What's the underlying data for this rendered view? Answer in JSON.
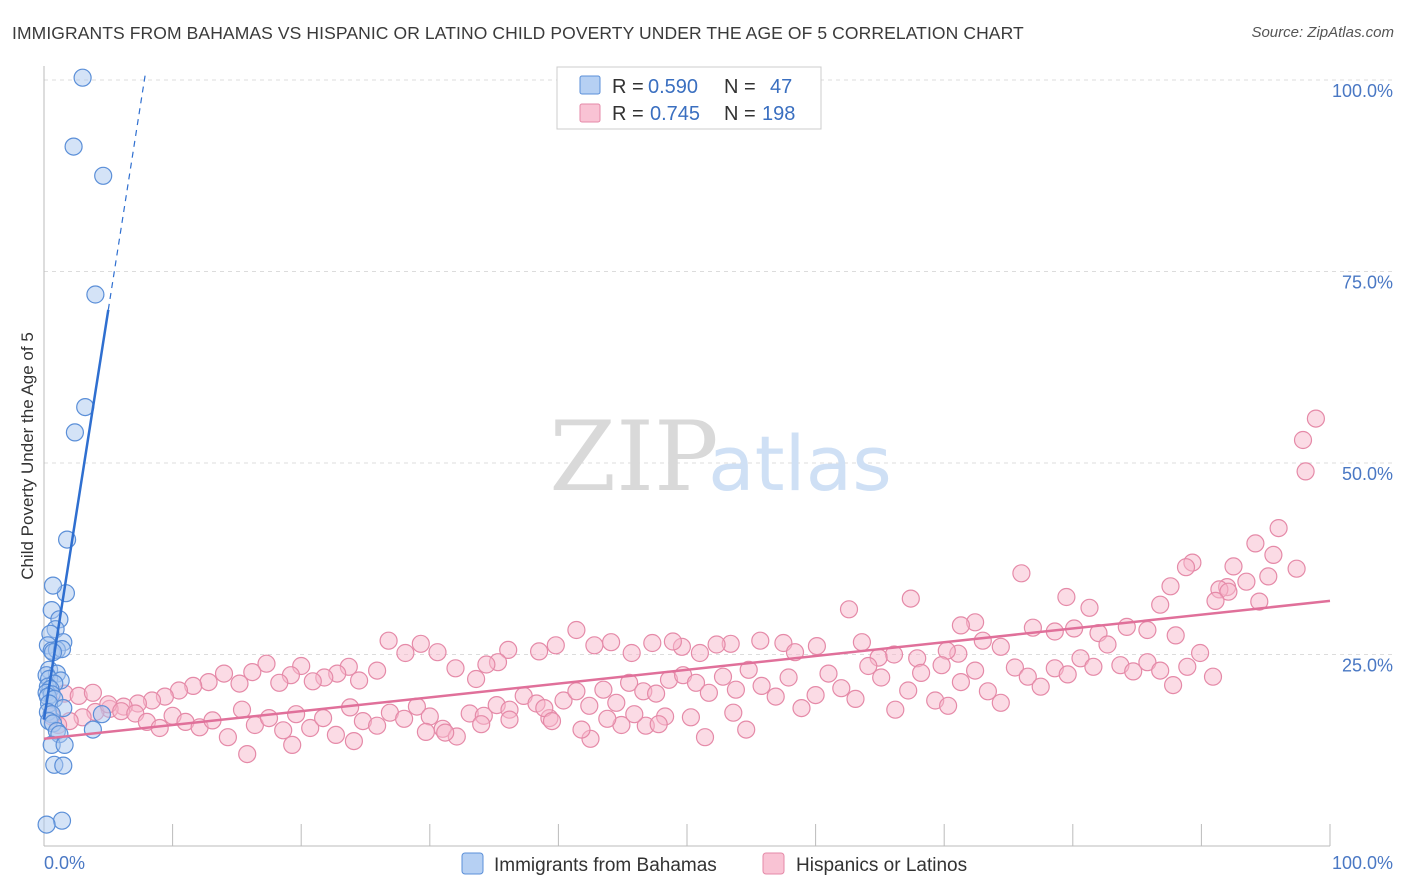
{
  "header": {
    "title": "IMMIGRANTS FROM BAHAMAS VS HISPANIC OR LATINO CHILD POVERTY UNDER THE AGE OF 5 CORRELATION CHART",
    "source": "Source: ZipAtlas.com"
  },
  "watermark": {
    "zip": "ZIP",
    "atlas": "atlas"
  },
  "legend_box": {
    "rows": [
      {
        "r_label": "R =",
        "r_value": "0.590",
        "n_label": "N =",
        "n_value": "47"
      },
      {
        "r_label": "R =",
        "r_value": "0.745",
        "n_label": "N =",
        "n_value": "198"
      }
    ]
  },
  "colors": {
    "blue_fill": "#a9c8f0",
    "blue_stroke": "#5b8fd8",
    "blue_line": "#2f6fd0",
    "pink_fill": "#f7b8cc",
    "pink_stroke": "#e58aa8",
    "pink_line": "#e0709a",
    "grid": "#dcdcdc",
    "axis_text": "#4a78c4"
  },
  "chart_data": {
    "type": "scatter",
    "title": "IMMIGRANTS FROM BAHAMAS VS HISPANIC OR LATINO CHILD POVERTY UNDER THE AGE OF 5 CORRELATION CHART",
    "xlabel": "",
    "ylabel": "Child Poverty Under the Age of 5",
    "xlim": [
      0,
      100
    ],
    "ylim": [
      0,
      105
    ],
    "x_tick_labels": [
      "0.0%",
      "100.0%"
    ],
    "y_ticks": [
      25,
      50,
      75,
      100
    ],
    "y_tick_labels": [
      "25.0%",
      "50.0%",
      "75.0%",
      "100.0%"
    ],
    "legend": [
      "Immigrants from Bahamas",
      "Hispanics or Latinos"
    ],
    "series": [
      {
        "name": "Immigrants from Bahamas",
        "r": 0.59,
        "n": 47,
        "trend": {
          "x0": 0.0,
          "y0": 16.5,
          "x1": 5.0,
          "y1": 70.0,
          "dash_to_x": 7.9,
          "dash_to_y": 101.0
        },
        "points": [
          [
            3.0,
            100.3
          ],
          [
            2.3,
            91.3
          ],
          [
            4.6,
            87.5
          ],
          [
            4.0,
            72.0
          ],
          [
            3.2,
            57.3
          ],
          [
            2.4,
            54.0
          ],
          [
            1.8,
            40.0
          ],
          [
            1.7,
            33.0
          ],
          [
            0.7,
            34.0
          ],
          [
            0.6,
            30.8
          ],
          [
            1.2,
            29.6
          ],
          [
            0.9,
            28.3
          ],
          [
            0.5,
            27.7
          ],
          [
            1.5,
            26.6
          ],
          [
            0.3,
            26.2
          ],
          [
            0.6,
            25.5
          ],
          [
            1.0,
            25.6
          ],
          [
            1.4,
            25.7
          ],
          [
            0.7,
            25.3
          ],
          [
            0.4,
            23.0
          ],
          [
            1.0,
            22.5
          ],
          [
            0.2,
            22.3
          ],
          [
            0.4,
            21.8
          ],
          [
            1.3,
            21.6
          ],
          [
            0.8,
            21.2
          ],
          [
            0.3,
            20.8
          ],
          [
            0.5,
            20.5
          ],
          [
            0.2,
            20.0
          ],
          [
            0.6,
            19.8
          ],
          [
            0.3,
            19.5
          ],
          [
            0.8,
            19.2
          ],
          [
            0.4,
            18.6
          ],
          [
            1.5,
            18.0
          ],
          [
            0.3,
            17.5
          ],
          [
            0.6,
            17.2
          ],
          [
            4.5,
            17.2
          ],
          [
            0.4,
            16.3
          ],
          [
            0.7,
            16.0
          ],
          [
            3.8,
            15.2
          ],
          [
            1.0,
            15.0
          ],
          [
            1.2,
            14.6
          ],
          [
            0.6,
            13.2
          ],
          [
            1.6,
            13.2
          ],
          [
            0.8,
            10.6
          ],
          [
            1.5,
            10.5
          ],
          [
            1.4,
            3.3
          ],
          [
            0.2,
            2.8
          ]
        ]
      },
      {
        "name": "Hispanics or Latinos",
        "r": 0.745,
        "n": 198,
        "trend": {
          "x0": 0.0,
          "y0": 14.0,
          "x1": 100.0,
          "y1": 32.0
        },
        "points": [
          [
            98.9,
            55.8
          ],
          [
            97.9,
            53.0
          ],
          [
            98.1,
            48.9
          ],
          [
            96.0,
            41.5
          ],
          [
            94.2,
            39.5
          ],
          [
            95.6,
            38.0
          ],
          [
            95.2,
            35.2
          ],
          [
            97.4,
            36.2
          ],
          [
            89.3,
            37.0
          ],
          [
            88.8,
            36.4
          ],
          [
            92.5,
            36.5
          ],
          [
            93.5,
            34.5
          ],
          [
            92.0,
            33.8
          ],
          [
            87.6,
            33.9
          ],
          [
            91.4,
            33.5
          ],
          [
            92.1,
            33.2
          ],
          [
            91.1,
            32.0
          ],
          [
            94.5,
            31.9
          ],
          [
            86.8,
            31.5
          ],
          [
            79.5,
            32.5
          ],
          [
            76.0,
            35.6
          ],
          [
            81.3,
            31.1
          ],
          [
            67.4,
            32.3
          ],
          [
            62.6,
            30.9
          ],
          [
            76.9,
            28.5
          ],
          [
            78.6,
            28.0
          ],
          [
            80.1,
            28.4
          ],
          [
            82.0,
            27.8
          ],
          [
            84.2,
            28.6
          ],
          [
            85.8,
            28.2
          ],
          [
            88.0,
            27.5
          ],
          [
            72.4,
            29.2
          ],
          [
            71.3,
            28.8
          ],
          [
            74.4,
            26.0
          ],
          [
            73.0,
            26.8
          ],
          [
            71.1,
            25.1
          ],
          [
            70.2,
            25.5
          ],
          [
            69.8,
            23.6
          ],
          [
            67.9,
            24.5
          ],
          [
            66.1,
            25.0
          ],
          [
            64.9,
            24.6
          ],
          [
            63.6,
            26.6
          ],
          [
            60.1,
            26.1
          ],
          [
            57.5,
            26.5
          ],
          [
            58.4,
            25.3
          ],
          [
            55.7,
            26.8
          ],
          [
            53.4,
            26.4
          ],
          [
            52.3,
            26.3
          ],
          [
            51.0,
            25.2
          ],
          [
            49.6,
            26.0
          ],
          [
            48.9,
            26.7
          ],
          [
            47.3,
            26.5
          ],
          [
            45.7,
            25.2
          ],
          [
            44.1,
            26.6
          ],
          [
            42.8,
            26.2
          ],
          [
            41.4,
            28.2
          ],
          [
            39.8,
            26.2
          ],
          [
            38.5,
            25.4
          ],
          [
            36.1,
            25.6
          ],
          [
            35.3,
            24.0
          ],
          [
            34.4,
            23.7
          ],
          [
            33.6,
            21.8
          ],
          [
            32.0,
            23.2
          ],
          [
            30.6,
            25.3
          ],
          [
            29.3,
            26.4
          ],
          [
            28.1,
            25.2
          ],
          [
            26.8,
            26.8
          ],
          [
            25.9,
            22.9
          ],
          [
            24.5,
            21.6
          ],
          [
            23.7,
            23.4
          ],
          [
            22.8,
            22.5
          ],
          [
            21.8,
            22.0
          ],
          [
            20.9,
            21.5
          ],
          [
            20.0,
            23.5
          ],
          [
            19.2,
            22.3
          ],
          [
            18.3,
            21.3
          ],
          [
            17.3,
            23.8
          ],
          [
            16.2,
            22.7
          ],
          [
            15.2,
            21.2
          ],
          [
            14.0,
            22.5
          ],
          [
            12.8,
            21.4
          ],
          [
            11.6,
            20.9
          ],
          [
            10.5,
            20.3
          ],
          [
            9.4,
            19.5
          ],
          [
            8.4,
            19.0
          ],
          [
            7.3,
            18.6
          ],
          [
            6.2,
            18.2
          ],
          [
            5.1,
            17.9
          ],
          [
            4.0,
            17.5
          ],
          [
            3.0,
            16.8
          ],
          [
            2.0,
            16.3
          ],
          [
            1.1,
            15.8
          ],
          [
            0.6,
            16.9
          ],
          [
            1.6,
            19.9
          ],
          [
            2.7,
            19.6
          ],
          [
            3.8,
            20.0
          ],
          [
            5.0,
            18.5
          ],
          [
            6.0,
            17.6
          ],
          [
            7.1,
            17.3
          ],
          [
            8.0,
            16.2
          ],
          [
            9.0,
            15.4
          ],
          [
            10.0,
            17.0
          ],
          [
            11.0,
            16.2
          ],
          [
            12.1,
            15.5
          ],
          [
            13.1,
            16.4
          ],
          [
            14.3,
            14.2
          ],
          [
            15.4,
            17.8
          ],
          [
            16.4,
            15.8
          ],
          [
            17.5,
            16.7
          ],
          [
            18.6,
            15.1
          ],
          [
            19.6,
            17.2
          ],
          [
            20.7,
            15.4
          ],
          [
            21.7,
            16.7
          ],
          [
            22.7,
            14.5
          ],
          [
            23.8,
            18.1
          ],
          [
            24.8,
            16.3
          ],
          [
            25.9,
            15.7
          ],
          [
            26.9,
            17.4
          ],
          [
            28.0,
            16.6
          ],
          [
            29.0,
            18.2
          ],
          [
            30.0,
            16.9
          ],
          [
            31.0,
            15.3
          ],
          [
            32.1,
            14.3
          ],
          [
            33.1,
            17.3
          ],
          [
            34.2,
            17.0
          ],
          [
            35.2,
            18.4
          ],
          [
            36.2,
            17.8
          ],
          [
            37.3,
            19.6
          ],
          [
            38.3,
            18.6
          ],
          [
            39.3,
            16.7
          ],
          [
            40.4,
            19.0
          ],
          [
            41.4,
            20.2
          ],
          [
            42.4,
            18.3
          ],
          [
            43.5,
            20.4
          ],
          [
            44.5,
            18.7
          ],
          [
            45.5,
            21.3
          ],
          [
            46.6,
            20.2
          ],
          [
            47.6,
            19.9
          ],
          [
            48.6,
            21.7
          ],
          [
            49.7,
            22.3
          ],
          [
            50.7,
            21.3
          ],
          [
            51.7,
            20.0
          ],
          [
            52.8,
            22.1
          ],
          [
            53.8,
            20.4
          ],
          [
            54.8,
            23.0
          ],
          [
            55.8,
            20.9
          ],
          [
            56.9,
            19.5
          ],
          [
            57.9,
            22.0
          ],
          [
            58.9,
            18.0
          ],
          [
            60.0,
            19.7
          ],
          [
            61.0,
            22.5
          ],
          [
            62.0,
            20.6
          ],
          [
            63.1,
            19.2
          ],
          [
            64.1,
            23.5
          ],
          [
            65.1,
            22.0
          ],
          [
            66.2,
            17.8
          ],
          [
            67.2,
            20.3
          ],
          [
            68.2,
            22.6
          ],
          [
            69.3,
            19.0
          ],
          [
            70.3,
            18.3
          ],
          [
            71.3,
            21.4
          ],
          [
            72.4,
            22.9
          ],
          [
            73.4,
            20.2
          ],
          [
            74.4,
            18.7
          ],
          [
            75.5,
            23.3
          ],
          [
            76.5,
            22.1
          ],
          [
            77.5,
            20.8
          ],
          [
            78.6,
            23.2
          ],
          [
            79.6,
            22.4
          ],
          [
            80.6,
            24.5
          ],
          [
            81.6,
            23.4
          ],
          [
            82.7,
            26.3
          ],
          [
            83.7,
            23.6
          ],
          [
            84.7,
            22.8
          ],
          [
            85.8,
            24.0
          ],
          [
            86.8,
            22.9
          ],
          [
            87.8,
            21.0
          ],
          [
            88.9,
            23.4
          ],
          [
            89.9,
            25.2
          ],
          [
            90.9,
            22.1
          ],
          [
            31.2,
            14.8
          ],
          [
            36.2,
            16.5
          ],
          [
            38.9,
            18.0
          ],
          [
            42.5,
            14.0
          ],
          [
            44.9,
            15.8
          ],
          [
            46.8,
            15.7
          ],
          [
            48.3,
            16.9
          ],
          [
            19.3,
            13.2
          ],
          [
            15.8,
            12.0
          ],
          [
            24.1,
            13.7
          ],
          [
            29.7,
            14.9
          ],
          [
            34.0,
            15.9
          ],
          [
            39.5,
            16.3
          ],
          [
            41.8,
            15.2
          ],
          [
            43.8,
            16.6
          ],
          [
            45.9,
            17.2
          ],
          [
            47.8,
            15.9
          ],
          [
            50.3,
            16.8
          ],
          [
            53.6,
            17.4
          ],
          [
            51.4,
            14.2
          ],
          [
            54.6,
            15.2
          ]
        ]
      }
    ]
  },
  "bottom_legend": {
    "items": [
      {
        "label": "Immigrants from Bahamas"
      },
      {
        "label": "Hispanics or Latinos"
      }
    ]
  }
}
